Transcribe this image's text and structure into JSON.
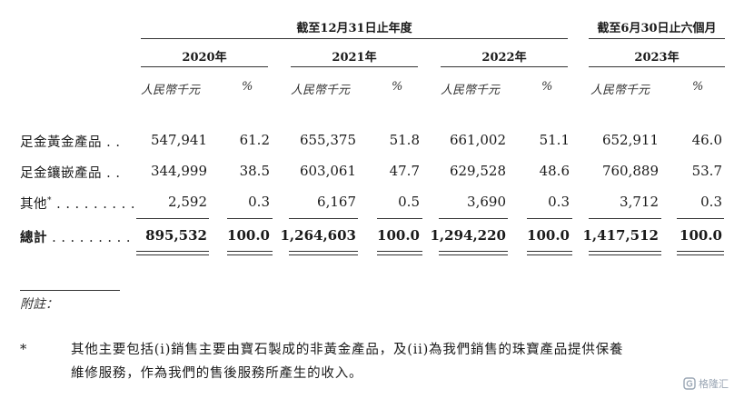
{
  "headers": {
    "period1": "截至12月31日止年度",
    "period2": "截至6月30日止六個月",
    "years": [
      "2020年",
      "2021年",
      "2022年",
      "2023年"
    ],
    "unit_label": "人民幣千元",
    "percent_label": "%"
  },
  "rows": [
    {
      "label": "足金黃金產品",
      "leader": " . .",
      "values": [
        "547,941",
        "61.2",
        "655,375",
        "51.8",
        "661,002",
        "51.1",
        "652,911",
        "46.0"
      ]
    },
    {
      "label": "足金鑲嵌產品",
      "leader": " . .",
      "values": [
        "344,999",
        "38.5",
        "603,061",
        "47.7",
        "629,528",
        "48.6",
        "760,889",
        "53.7"
      ]
    },
    {
      "label": "其他",
      "sup": "*",
      "leader": " . . . . . . . . .",
      "values": [
        "2,592",
        "0.3",
        "6,167",
        "0.5",
        "3,690",
        "0.3",
        "3,712",
        "0.3"
      ]
    }
  ],
  "total": {
    "label": "總計",
    "leader": " . . . . . . . . .",
    "values": [
      "895,532",
      "100.0",
      "1,264,603",
      "100.0",
      "1,294,220",
      "100.0",
      "1,417,512",
      "100.0"
    ]
  },
  "notes": {
    "heading": "附註：",
    "marker": "*",
    "line1": "其他主要包括(i)銷售主要由寶石製成的非黃金產品，及(ii)為我們銷售的珠寶產品提供保養",
    "line2": "維修服務，作為我們的售後服務所產生的收入。"
  },
  "watermark": {
    "icon": "gelonghui-logo-icon",
    "text": "格隆汇"
  }
}
